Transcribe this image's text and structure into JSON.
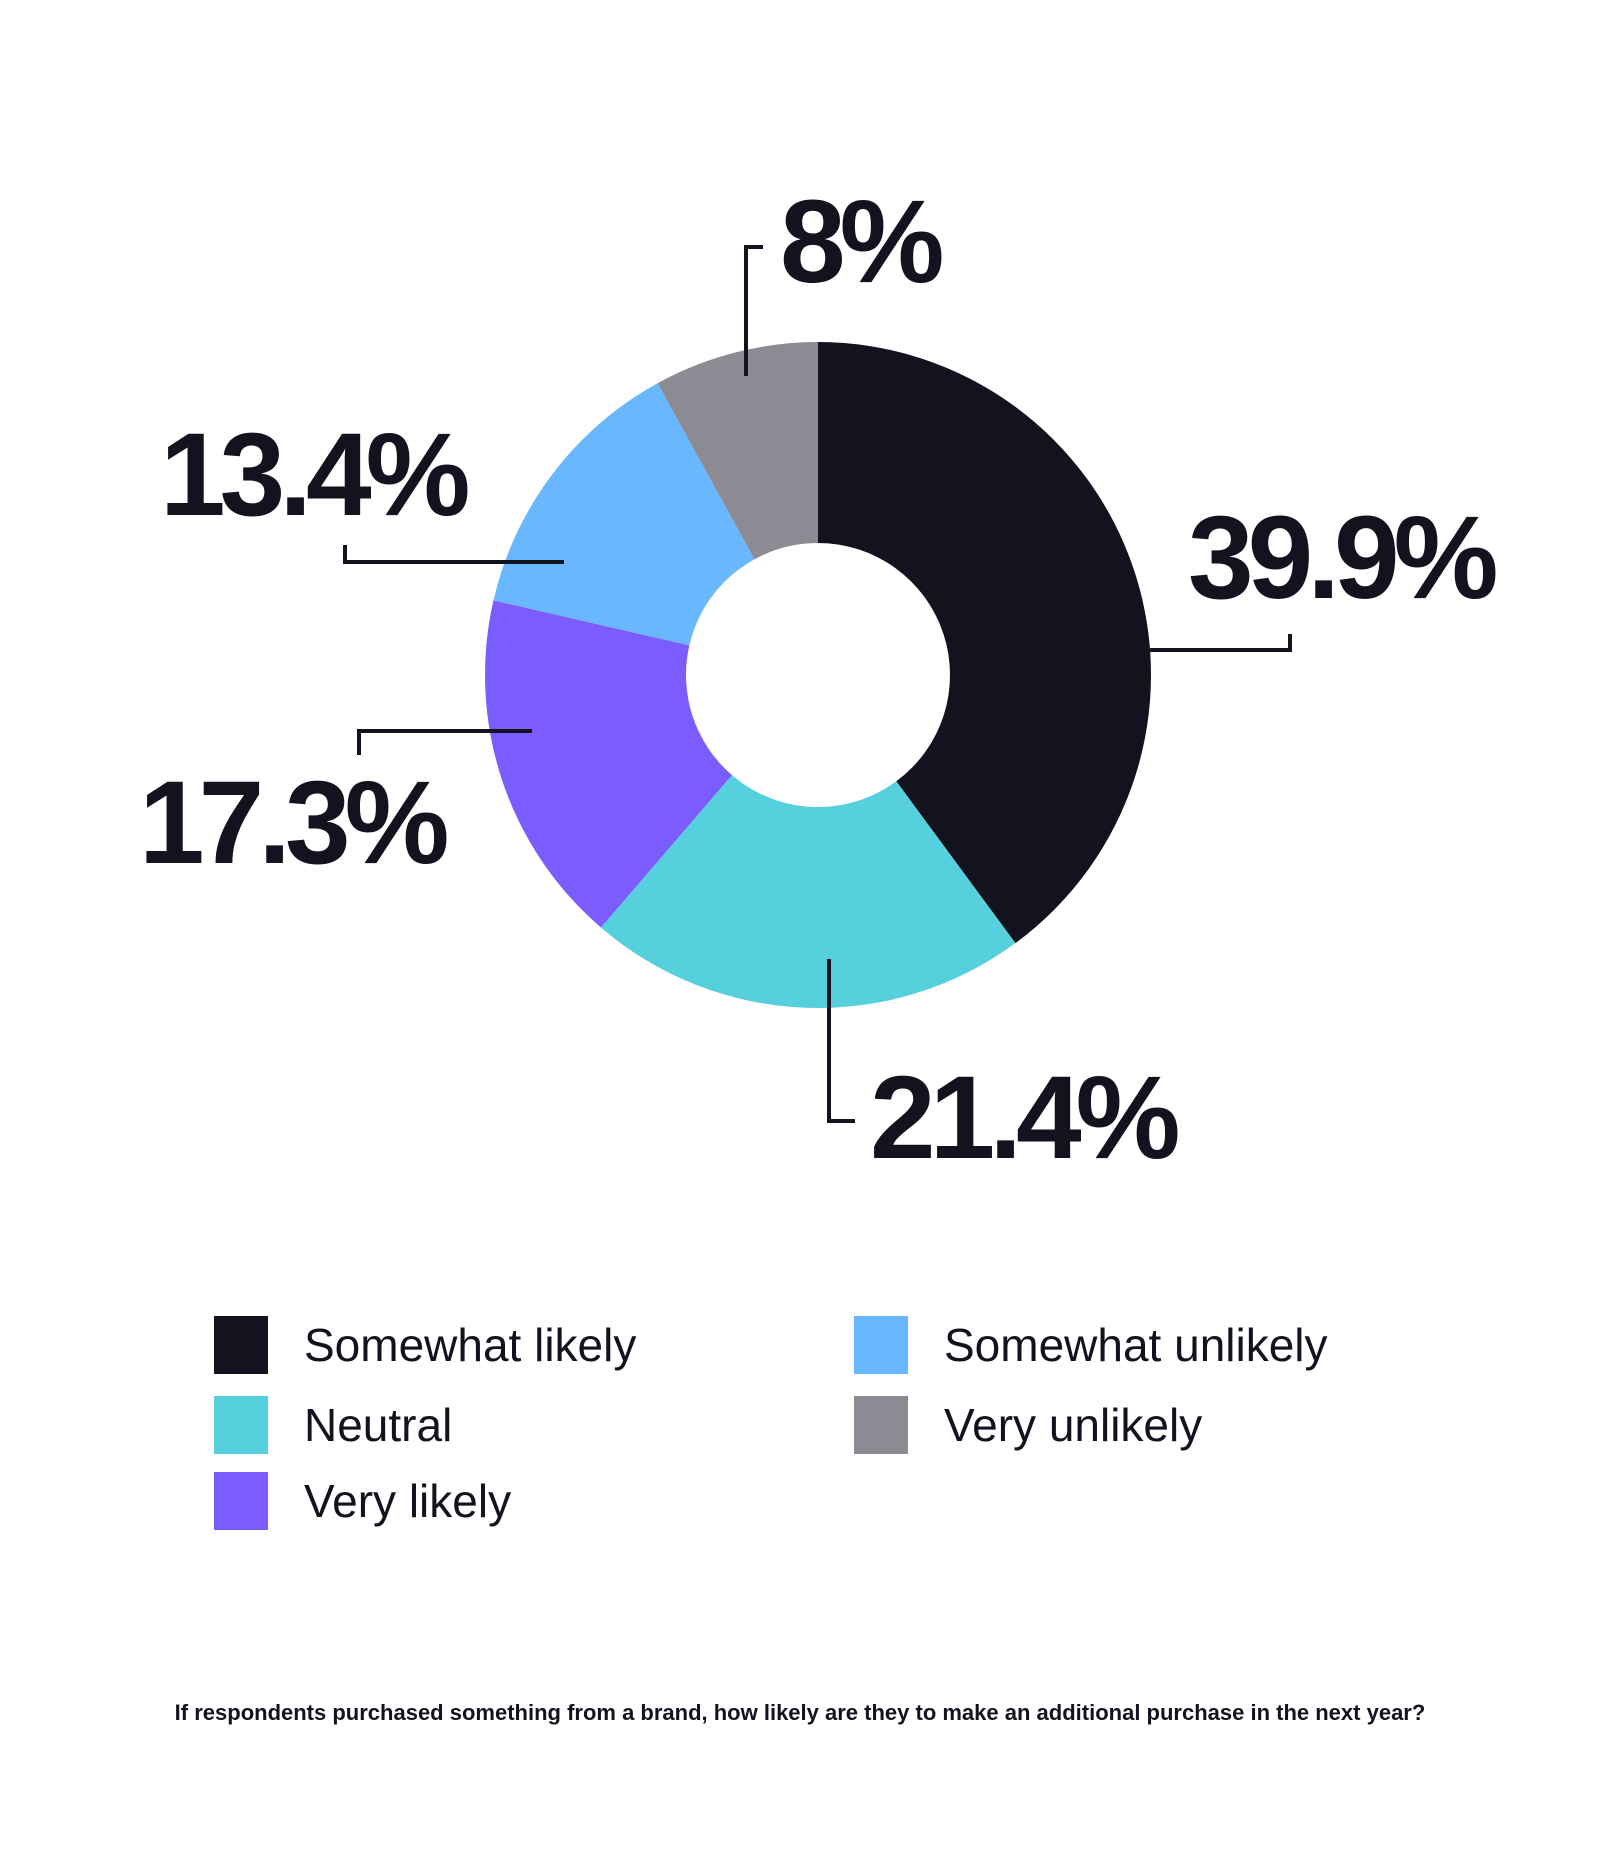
{
  "chart_data": {
    "type": "pie",
    "donut": true,
    "categories": [
      "Somewhat likely",
      "Neutral",
      "Very likely",
      "Somewhat unlikely",
      "Very unlikely"
    ],
    "values": [
      39.9,
      21.4,
      17.3,
      13.4,
      8
    ],
    "value_labels": [
      "39.9%",
      "21.4%",
      "17.3%",
      "13.4%",
      "8%"
    ],
    "colors": [
      "#13131f",
      "#55d0dc",
      "#7a5cff",
      "#69b8ff",
      "#8c8b94"
    ],
    "start": "12 o'clock",
    "direction": "clockwise",
    "legend_position": "bottom",
    "caption": "If respondents purchased something from a brand, how likely are they to make an additional purchase in the next year?"
  }
}
